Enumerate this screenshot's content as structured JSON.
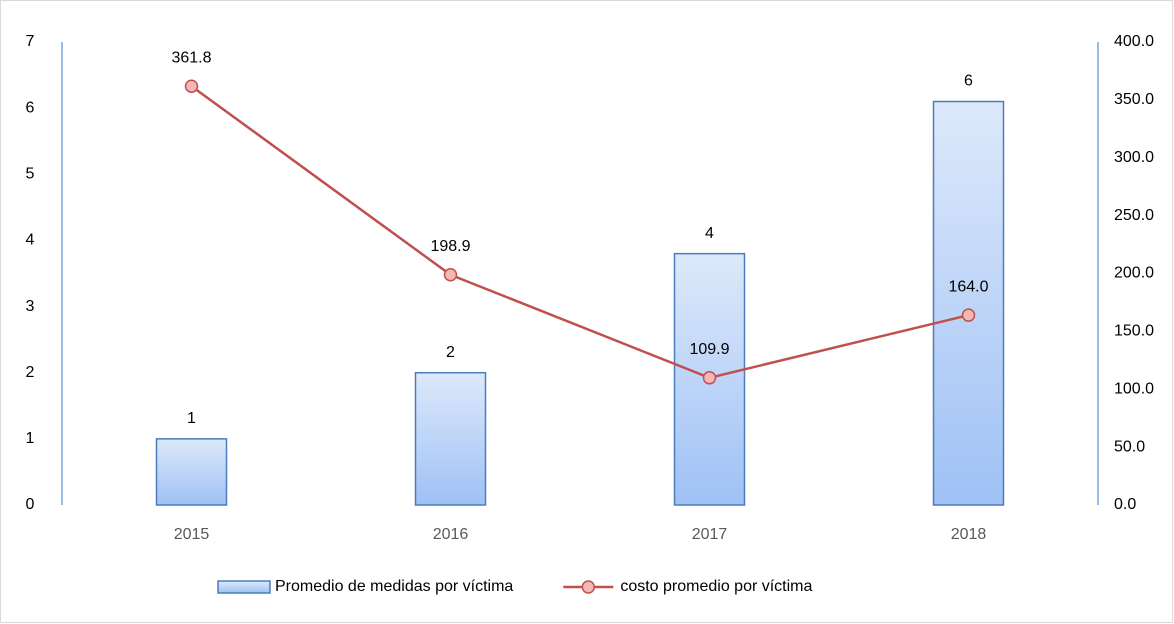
{
  "chart_data": {
    "type": "bar",
    "categories": [
      "2015",
      "2016",
      "2017",
      "2018"
    ],
    "series": [
      {
        "name": "Promedio de medidas por víctima",
        "type": "bar",
        "axis": "y",
        "color": "#4a7ebb",
        "values": [
          1,
          2,
          3.8,
          6.1
        ],
        "value_labels": [
          "1",
          "2",
          "4",
          "6"
        ]
      },
      {
        "name": "costo promedio por víctima",
        "type": "line",
        "axis": "y2",
        "color": "#c0504d",
        "values": [
          361.8,
          198.9,
          109.9,
          164.0
        ],
        "value_labels": [
          "361.8",
          "198.9",
          "109.9",
          "164.0"
        ]
      }
    ],
    "ylim": [
      0,
      7
    ],
    "yticks": [
      0,
      1,
      2,
      3,
      4,
      5,
      6,
      7
    ],
    "y2lim": [
      0,
      400
    ],
    "y2ticks": [
      {
        "value": 0,
        "label": "0.0"
      },
      {
        "value": 50,
        "label": "50.0"
      },
      {
        "value": 100,
        "label": "100.0"
      },
      {
        "value": 150,
        "label": "150.0"
      },
      {
        "value": 200,
        "label": "200.0"
      },
      {
        "value": 250,
        "label": "250.0"
      },
      {
        "value": 300,
        "label": "300.0"
      },
      {
        "value": 350,
        "label": "350.0"
      },
      {
        "value": 400,
        "label": "400.0"
      }
    ],
    "legend": "bottom",
    "grid": false
  }
}
